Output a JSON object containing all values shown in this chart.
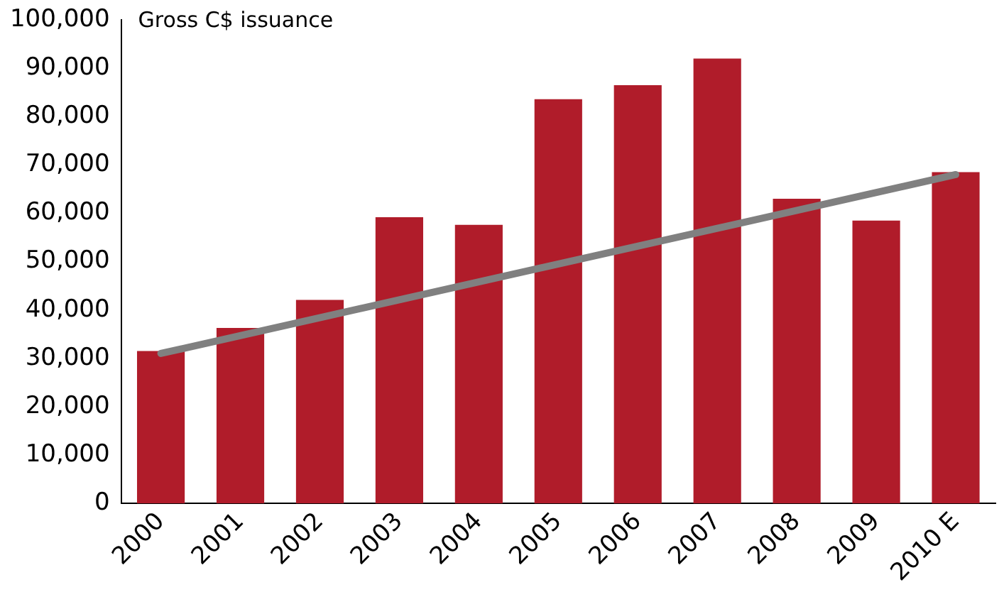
{
  "chart_data": {
    "type": "bar",
    "title": "Gross C$ issuance",
    "categories": [
      "2000",
      "2001",
      "2002",
      "2003",
      "2004",
      "2005",
      "2006",
      "2007",
      "2008",
      "2009",
      "2010 E"
    ],
    "series": [
      {
        "color": "#b01c2a",
        "values": [
          31500,
          36300,
          42100,
          59200,
          57600,
          83600,
          86500,
          92000,
          63000,
          58500,
          68500
        ]
      },
      {
        "type": "line",
        "color": "#808080",
        "values": [
          31000,
          null,
          null,
          null,
          null,
          null,
          null,
          null,
          null,
          null,
          68000
        ]
      }
    ],
    "ylim": [
      0,
      100000
    ],
    "yticks": [
      0,
      {
        "value": 10000,
        "label": "10,000"
      },
      {
        "value": 20000,
        "label": "20,000"
      },
      {
        "value": 30000,
        "label": "30,000"
      },
      {
        "value": 40000,
        "label": "40,000"
      },
      {
        "value": 50000,
        "label": "50,000"
      },
      {
        "value": 60000,
        "label": "60,000"
      },
      {
        "value": 70000,
        "label": "70,000"
      },
      {
        "value": 80000,
        "label": "80,000"
      },
      {
        "value": 90000,
        "label": "90,000"
      },
      {
        "value": 100000,
        "label": "100,000"
      }
    ],
    "grid": false,
    "legend": false
  }
}
